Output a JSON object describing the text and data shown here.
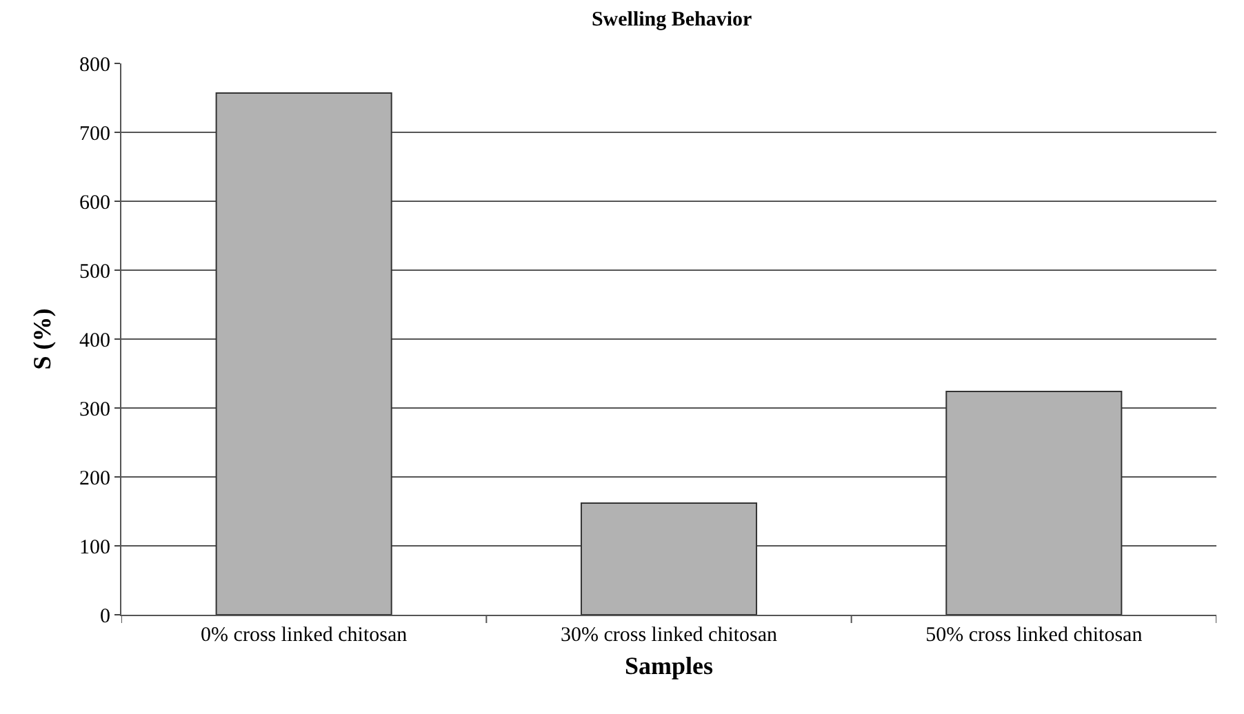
{
  "chart_data": {
    "type": "bar",
    "title": "Swelling Behavior",
    "xlabel": "Samples",
    "ylabel": "S (%)",
    "categories": [
      "0% cross linked chitosan",
      "30% cross linked chitosan",
      "50% cross linked chitosan"
    ],
    "values": [
      757,
      162,
      324
    ],
    "color": "#b2b2b2",
    "ylim": [
      0,
      800
    ],
    "yticks": [
      0,
      100,
      200,
      300,
      400,
      500,
      600,
      700,
      800
    ],
    "grid": "y",
    "legend": false
  }
}
